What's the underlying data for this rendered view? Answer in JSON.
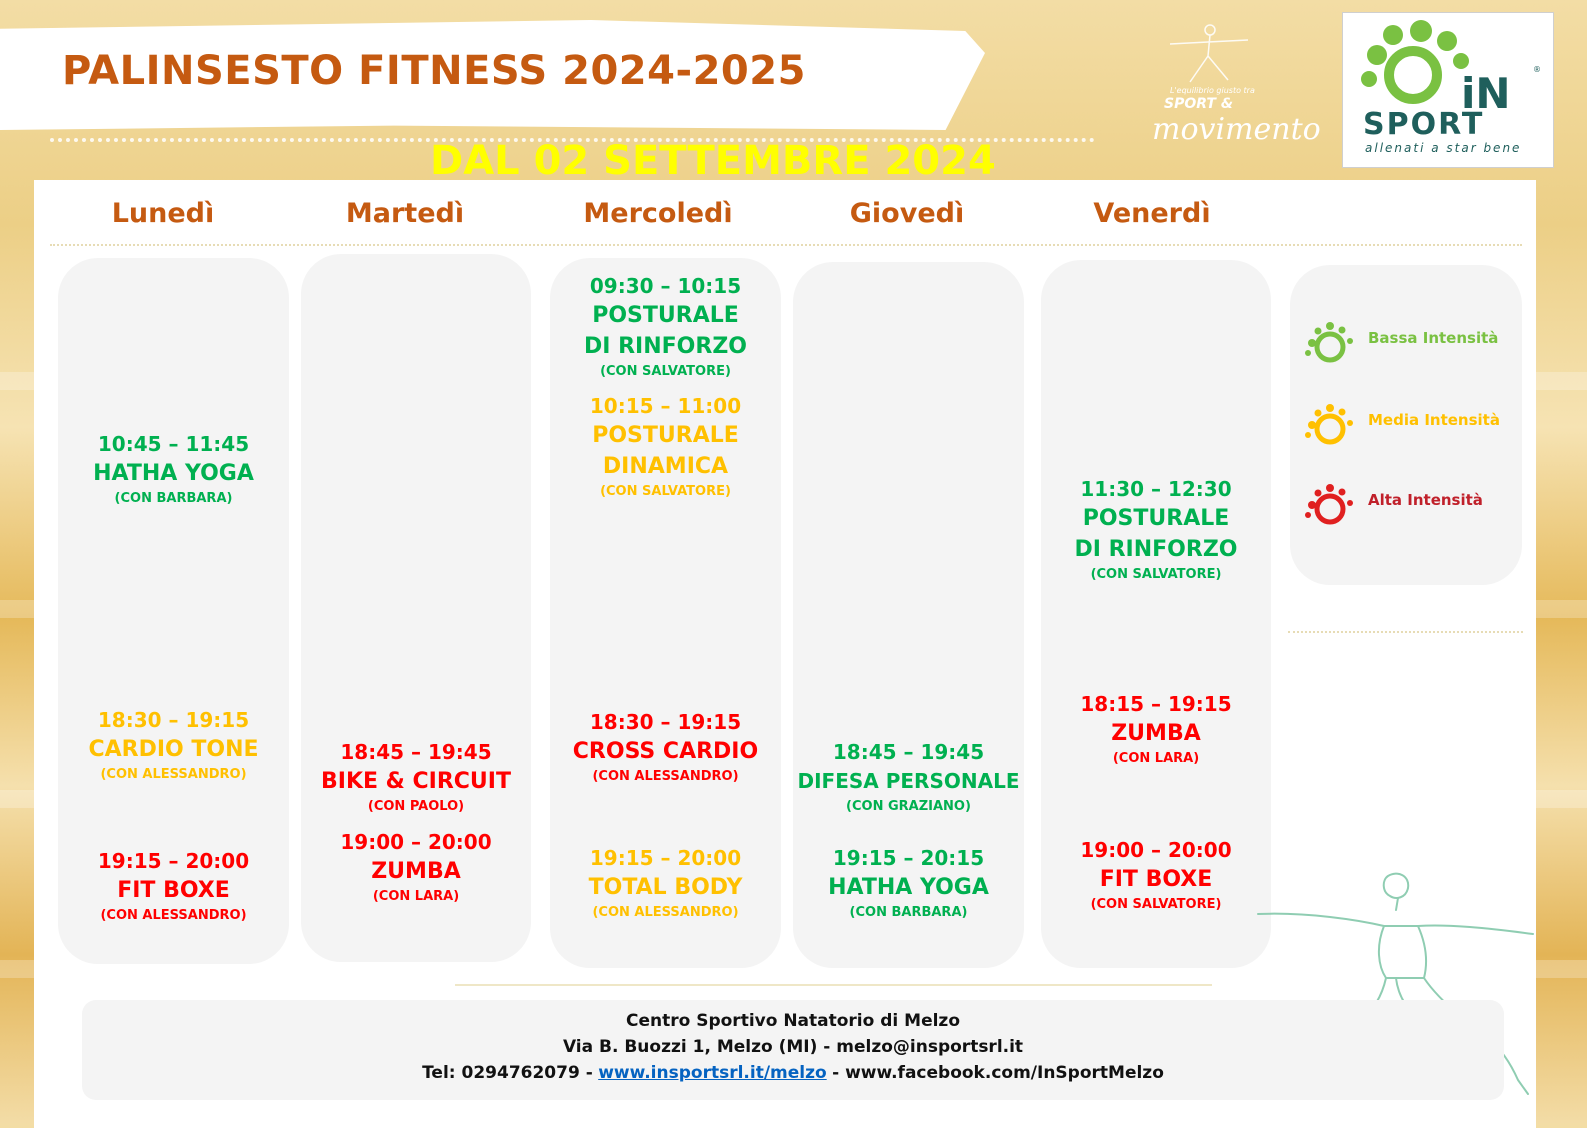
{
  "header": {
    "title": "PALINSESTO FITNESS 2024-2025",
    "subtitle": "DAL 02 SETTEMBRE 2024",
    "movimento_tagline": "L'equilibrio giusto tra",
    "movimento_sport": "SPORT &",
    "movimento_word": "movimento",
    "logo_in": "iN",
    "logo_sport": "SPORT",
    "logo_tagline": "allenati a star bene",
    "logo_reg": "®"
  },
  "days": [
    "Lunedì",
    "Martedì",
    "Mercoledì",
    "Giovedì",
    "Venerdì"
  ],
  "colors": {
    "bassa": "#00b050",
    "media": "#ffc000",
    "alta": "#ff0000",
    "day": "#c55a11",
    "subtitle": "#ffff00"
  },
  "schedule": {
    "lun": [
      {
        "time": "10:45 – 11:45",
        "name": "HATHA YOGA",
        "with": "(CON BARBARA)",
        "intensity": "bassa"
      },
      {
        "time": "18:30 – 19:15",
        "name": "CARDIO TONE",
        "with": "(CON ALESSANDRO)",
        "intensity": "media"
      },
      {
        "time": "19:15 – 20:00",
        "name": "FIT BOXE",
        "with": "(CON ALESSANDRO)",
        "intensity": "alta"
      }
    ],
    "mar": [
      {
        "time": "18:45 – 19:45",
        "name": "BIKE & CIRCUIT",
        "with": "(CON PAOLO)",
        "intensity": "alta"
      },
      {
        "time": "19:00 – 20:00",
        "name": "ZUMBA",
        "with": "(CON LARA)",
        "intensity": "alta"
      }
    ],
    "mer": [
      {
        "time": "09:30 – 10:15",
        "name": "POSTURALE",
        "name2": "DI RINFORZO",
        "with": "(CON SALVATORE)",
        "intensity": "bassa"
      },
      {
        "time": "10:15 – 11:00",
        "name": "POSTURALE",
        "name2": "DINAMICA",
        "with": "(CON SALVATORE)",
        "intensity": "media"
      },
      {
        "time": "18:30 – 19:15",
        "name": "CROSS CARDIO",
        "with": "(CON ALESSANDRO)",
        "intensity": "alta"
      },
      {
        "time": "19:15 – 20:00",
        "name": "TOTAL BODY",
        "with": "(CON ALESSANDRO)",
        "intensity": "media"
      }
    ],
    "gio": [
      {
        "time": "18:45 – 19:45",
        "name": "DIFESA PERSONALE",
        "with": "(CON GRAZIANO)",
        "intensity": "bassa"
      },
      {
        "time": "19:15 – 20:15",
        "name": "HATHA YOGA",
        "with": "(CON BARBARA)",
        "intensity": "bassa"
      }
    ],
    "ven": [
      {
        "time": "11:30 – 12:30",
        "name": "POSTURALE",
        "name2": "DI RINFORZO",
        "with": "(CON SALVATORE)",
        "intensity": "bassa"
      },
      {
        "time": "18:15 – 19:15",
        "name": "ZUMBA",
        "with": "(CON LARA)",
        "intensity": "alta"
      },
      {
        "time": "19:00 – 20:00",
        "name": "FIT BOXE",
        "with": "(CON SALVATORE)",
        "intensity": "alta"
      }
    ]
  },
  "legend": {
    "bassa": "Bassa Intensità",
    "media": "Media Intensità",
    "alta": "Alta Intensità"
  },
  "footer": {
    "line1": "Centro Sportivo  Natatorio  di Melzo",
    "line2": "Via B. Buozzi  1, Melzo (MI) - melzo@insportsrl.it",
    "tel": "Tel: 0294762079 -",
    "link": "www.insportsrl.it/melzo",
    "facebook": " - www.facebook.com/InSportMelzo"
  }
}
